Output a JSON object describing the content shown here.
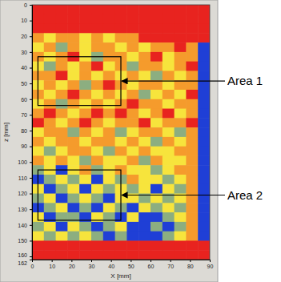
{
  "chart_data": {
    "type": "heatmap",
    "x_label": "X [mm]",
    "y_label": "z [mm]",
    "x": [
      0,
      6,
      12,
      18,
      24,
      30,
      36,
      42,
      48,
      54,
      60,
      66,
      72,
      78,
      84
    ],
    "y": [
      0,
      6,
      12,
      18,
      24,
      30,
      36,
      42,
      48,
      54,
      60,
      66,
      72,
      78,
      84,
      90,
      96,
      102,
      108,
      114,
      120,
      126,
      132,
      138,
      144,
      150,
      156
    ],
    "cells": [
      [
        4,
        4,
        4,
        4,
        4,
        4,
        4,
        4,
        4,
        4,
        4,
        4,
        4,
        4,
        4
      ],
      [
        4,
        4,
        4,
        4,
        4,
        4,
        4,
        4,
        4,
        4,
        4,
        4,
        4,
        4,
        4
      ],
      [
        4,
        4,
        4,
        4,
        4,
        4,
        4,
        4,
        4,
        4,
        4,
        4,
        4,
        4,
        4
      ],
      [
        3,
        2,
        3,
        3,
        2,
        3,
        2,
        3,
        3,
        4,
        4,
        4,
        4,
        4,
        4
      ],
      [
        2,
        3,
        1,
        3,
        2,
        3,
        3,
        2,
        3,
        2,
        3,
        3,
        4,
        3,
        0
      ],
      [
        3,
        2,
        3,
        4,
        2,
        1,
        3,
        3,
        2,
        3,
        4,
        2,
        3,
        3,
        0
      ],
      [
        2,
        1,
        3,
        2,
        3,
        4,
        2,
        3,
        1,
        3,
        3,
        2,
        3,
        4,
        0
      ],
      [
        3,
        3,
        4,
        2,
        3,
        2,
        3,
        2,
        3,
        2,
        1,
        3,
        2,
        3,
        0
      ],
      [
        2,
        3,
        2,
        3,
        1,
        3,
        4,
        3,
        2,
        3,
        3,
        2,
        3,
        3,
        0
      ],
      [
        3,
        2,
        3,
        4,
        3,
        2,
        3,
        2,
        3,
        1,
        2,
        3,
        2,
        4,
        0
      ],
      [
        2,
        3,
        1,
        3,
        2,
        3,
        2,
        3,
        4,
        3,
        3,
        2,
        3,
        3,
        0
      ],
      [
        3,
        4,
        3,
        2,
        3,
        4,
        3,
        4,
        3,
        2,
        3,
        4,
        2,
        3,
        0
      ],
      [
        4,
        3,
        2,
        3,
        4,
        3,
        2,
        3,
        3,
        4,
        2,
        3,
        3,
        4,
        0
      ],
      [
        2,
        3,
        3,
        1,
        3,
        2,
        3,
        1,
        2,
        3,
        3,
        2,
        1,
        3,
        0
      ],
      [
        3,
        2,
        3,
        3,
        2,
        3,
        3,
        2,
        3,
        2,
        1,
        3,
        2,
        3,
        0
      ],
      [
        2,
        1,
        2,
        3,
        3,
        2,
        1,
        3,
        2,
        3,
        2,
        2,
        3,
        3,
        0
      ],
      [
        3,
        2,
        3,
        2,
        1,
        3,
        2,
        2,
        3,
        1,
        3,
        2,
        2,
        3,
        0
      ],
      [
        1,
        2,
        0,
        2,
        3,
        1,
        2,
        3,
        2,
        2,
        1,
        2,
        3,
        3,
        0
      ],
      [
        0,
        1,
        2,
        1,
        2,
        0,
        2,
        1,
        3,
        2,
        2,
        1,
        2,
        3,
        0
      ],
      [
        2,
        0,
        1,
        2,
        0,
        2,
        1,
        2,
        1,
        2,
        0,
        2,
        1,
        3,
        0
      ],
      [
        1,
        2,
        0,
        1,
        2,
        1,
        0,
        2,
        2,
        1,
        2,
        1,
        2,
        3,
        0
      ],
      [
        0,
        1,
        2,
        0,
        1,
        0,
        2,
        1,
        0,
        2,
        1,
        2,
        1,
        3,
        0
      ],
      [
        2,
        0,
        1,
        1,
        0,
        2,
        1,
        0,
        2,
        0,
        0,
        1,
        2,
        3,
        0
      ],
      [
        1,
        2,
        0,
        2,
        1,
        0,
        1,
        2,
        0,
        0,
        1,
        0,
        1,
        3,
        0
      ],
      [
        2,
        1,
        2,
        1,
        2,
        1,
        0,
        1,
        0,
        0,
        0,
        1,
        2,
        3,
        0
      ],
      [
        4,
        4,
        4,
        4,
        4,
        4,
        4,
        4,
        4,
        4,
        4,
        4,
        4,
        4,
        4
      ],
      [
        4,
        4,
        4,
        4,
        4,
        4,
        4,
        4,
        4,
        4,
        4,
        4,
        4,
        4,
        4
      ]
    ],
    "xlim": [
      0,
      90
    ],
    "ylim": [
      0,
      162
    ],
    "xticks": [
      0,
      10,
      20,
      30,
      40,
      50,
      60,
      70,
      80,
      90
    ],
    "yticks": [
      0,
      10,
      20,
      30,
      40,
      50,
      60,
      70,
      80,
      90,
      100,
      110,
      120,
      130,
      140,
      150,
      160,
      162
    ],
    "annotations": [
      {
        "text": "Area 1",
        "x": [
          3,
          45
        ],
        "y": [
          33,
          64
        ]
      },
      {
        "text": "Area 2",
        "x": [
          3,
          45
        ],
        "y": [
          105,
          137
        ]
      }
    ]
  }
}
